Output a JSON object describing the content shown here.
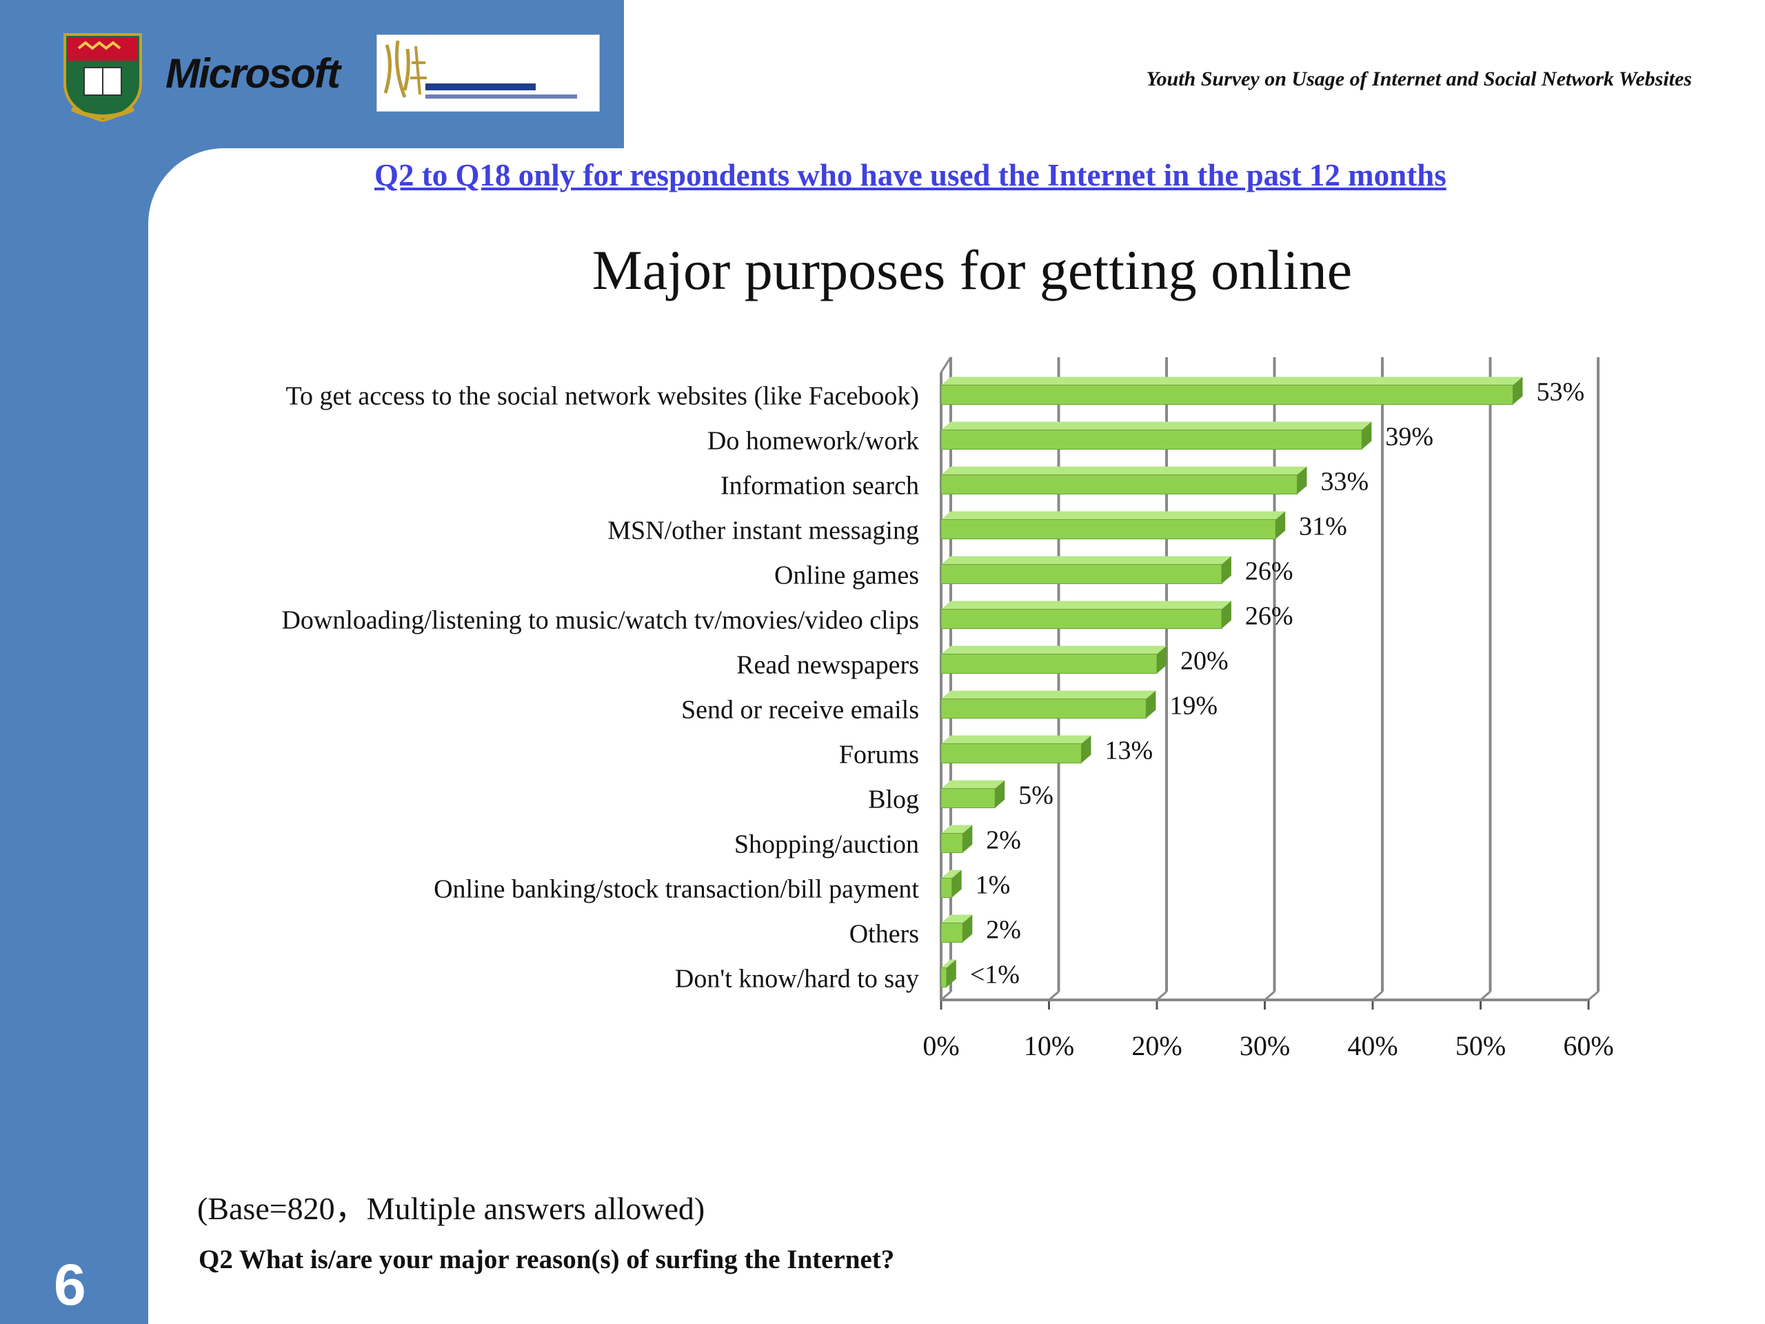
{
  "header": {
    "brand_label": "Microsoft",
    "survey_title": "Youth Survey on Usage of Internet and Social Network Websites",
    "subtitle": "Q2 to Q18 only for respondents who have used the Internet in the past 12 months"
  },
  "footer": {
    "base_note": "(Base=820，Multiple answers allowed)",
    "question": "Q2  What is/are your major reason(s) of surfing the Internet?",
    "slide_number": "6"
  },
  "colors": {
    "band": "#4f81bd",
    "bar_front": "#8fd14f",
    "bar_top": "#b6e884",
    "bar_side": "#5f9a2c",
    "grid": "#888888",
    "subtitle": "#4040e0"
  },
  "icons": {
    "crest": "university-crest-icon",
    "hkcss": "hkcss-logo-icon"
  },
  "chart_data": {
    "type": "bar",
    "orientation": "horizontal",
    "title": "Major purposes for getting online",
    "categories": [
      "To get access to the social network websites (like Facebook)",
      "Do homework/work",
      "Information search",
      "MSN/other instant messaging",
      "Online games",
      "Downloading/listening to music/watch tv/movies/video clips",
      "Read newspapers",
      "Send or receive emails",
      "Forums",
      "Blog",
      "Shopping/auction",
      "Online banking/stock transaction/bill payment",
      "Others",
      "Don't know/hard to say"
    ],
    "values": [
      53,
      39,
      33,
      31,
      26,
      26,
      20,
      19,
      13,
      5,
      2,
      1,
      2,
      0.5
    ],
    "value_labels": [
      "53%",
      "39%",
      "33%",
      "31%",
      "26%",
      "26%",
      "20%",
      "19%",
      "13%",
      "5%",
      "2%",
      "1%",
      "2%",
      "<1%"
    ],
    "x_ticks": [
      "0%",
      "10%",
      "20%",
      "30%",
      "40%",
      "50%",
      "60%"
    ],
    "xlim": [
      0,
      60
    ],
    "grid": true,
    "style": "3d"
  }
}
